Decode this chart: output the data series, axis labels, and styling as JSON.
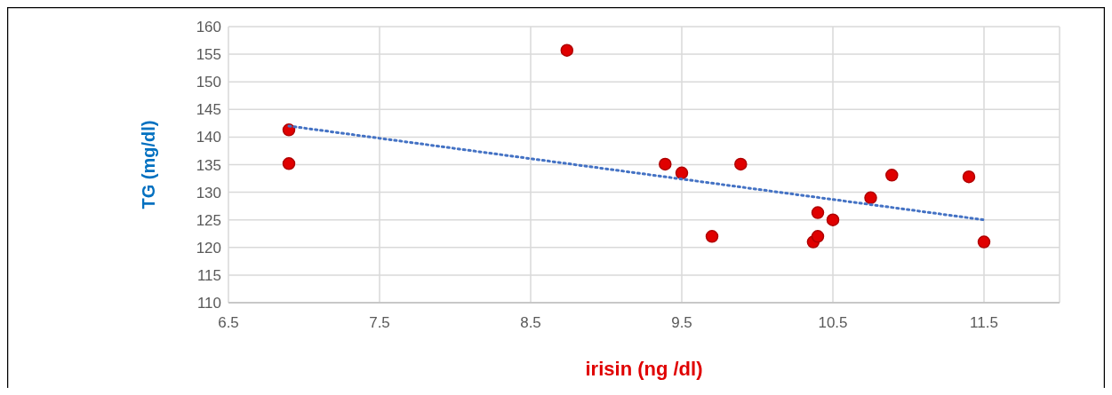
{
  "chart_data": {
    "type": "scatter",
    "xlabel": "irisin (ng /dl)",
    "ylabel": "TG (mg/dl)",
    "xlim": [
      6.5,
      12
    ],
    "xticks": [
      6.5,
      7.5,
      8.5,
      9.5,
      10.5,
      11.5
    ],
    "ylim": [
      110,
      160
    ],
    "yticks": [
      110,
      115,
      120,
      125,
      130,
      135,
      140,
      145,
      150,
      155,
      160
    ],
    "grid": true,
    "series": [
      {
        "color": "#e00000",
        "marker": "circle",
        "x": [
          6.9,
          6.9,
          8.74,
          9.39,
          9.5,
          9.7,
          9.89,
          10.37,
          10.4,
          10.4,
          10.5,
          10.75,
          10.89,
          11.4,
          11.5
        ],
        "values": [
          141.3,
          135.2,
          155.7,
          135.1,
          133.5,
          122,
          135.1,
          121,
          122,
          126.3,
          125,
          129,
          133.1,
          132.8,
          121
        ]
      },
      {
        "type": "line",
        "color": "#4472c4",
        "line_style": "dotted",
        "marker": "none",
        "x": [
          6.9,
          11.5
        ],
        "values": [
          142,
          125
        ]
      }
    ]
  }
}
